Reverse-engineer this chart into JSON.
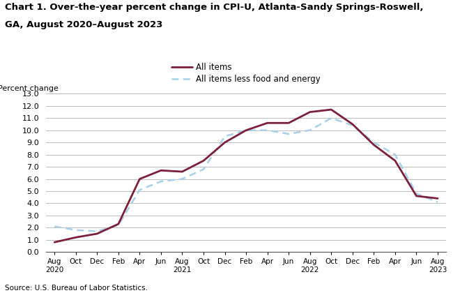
{
  "title_line1": "Chart 1. Over-the-year percent change in CPI-U, Atlanta-Sandy Springs-Roswell,",
  "title_line2": "GA, August 2020–August 2023",
  "ylabel": "Percent change",
  "source": "Source: U.S. Bureau of Labor Statistics.",
  "ylim": [
    0.0,
    13.0
  ],
  "yticks": [
    0.0,
    1.0,
    2.0,
    3.0,
    4.0,
    5.0,
    6.0,
    7.0,
    8.0,
    9.0,
    10.0,
    11.0,
    12.0,
    13.0
  ],
  "all_items": [
    0.8,
    1.2,
    1.5,
    2.3,
    6.0,
    6.7,
    6.6,
    7.5,
    9.0,
    10.0,
    10.6,
    10.6,
    11.5,
    11.7,
    10.5,
    8.8,
    7.5,
    4.6,
    4.4
  ],
  "all_items_less": [
    2.1,
    1.8,
    1.7,
    2.2,
    5.1,
    5.8,
    6.0,
    6.8,
    9.5,
    10.0,
    10.0,
    9.7,
    10.0,
    11.0,
    10.4,
    9.0,
    8.0,
    4.8,
    4.1
  ],
  "line1_color": "#7b1f3a",
  "line2_color": "#a8d0e8",
  "line1_label": "All items",
  "line2_label": "All items less food and energy",
  "x_tick_labels": [
    "Aug\n2020",
    "Oct",
    "Dec",
    "Feb",
    "Apr",
    "Jun",
    "Aug\n2021",
    "Oct",
    "Dec",
    "Feb",
    "Apr",
    "Jun",
    "Aug\n2022",
    "Oct",
    "Dec",
    "Feb",
    "Apr",
    "Jun",
    "Aug\n2023"
  ],
  "background_color": "#ffffff",
  "grid_color": "#bbbbbb"
}
